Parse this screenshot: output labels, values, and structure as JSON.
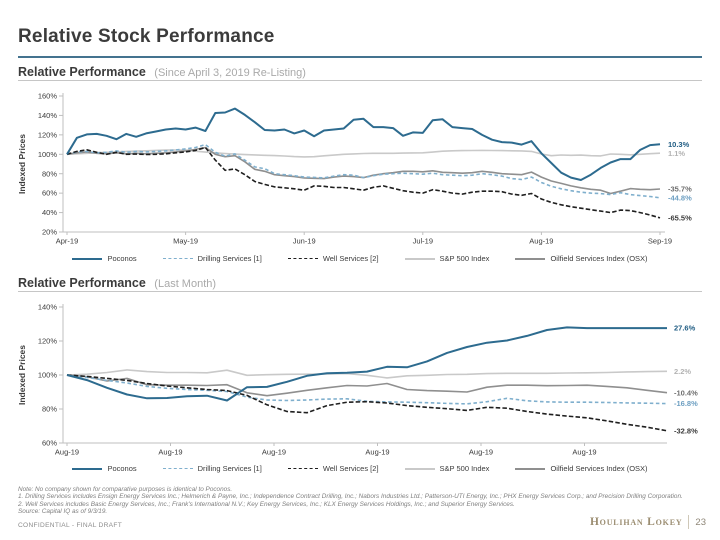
{
  "page": {
    "title": "Relative Stock Performance",
    "confidential": "CONFIDENTIAL - FINAL DRAFT",
    "logo": "Houlihan Lokey",
    "page_number": "23"
  },
  "colors": {
    "accent_rule": "#44738f",
    "poconos_blue": "#2d6b8f",
    "drilling_blue": "#7fafcd",
    "well_black": "#1f1f1f",
    "sp500_gray": "#c9c9c9",
    "osx_gray": "#8f8f8f"
  },
  "footnotes": {
    "note": "Note: No company shown for comparative purposes is identical to Poconos.",
    "f1": "1.  Drilling Services includes Ensign Energy Services Inc.; Helmerich & Payne, Inc.; Independence Contract Drilling, Inc.; Nabors Industries Ltd.; Patterson-UTI Energy, Inc.; PHX Energy Services Corp.; and Precision Drilling Corporation.",
    "f2": "2.  Well Services includes Basic Energy Services, Inc.; Frank's International N.V.; Key Energy Services, Inc.; KLX Energy Services Holdings, Inc.; and Superior Energy Services.",
    "source": "Source: Capital IQ as of 9/3/19."
  },
  "chart_data": [
    {
      "type": "line",
      "title": "Relative Performance",
      "subtitle": "(Since April 3, 2019 Re-Listing)",
      "ylabel": "Indexed Prices",
      "ylim": [
        20,
        160
      ],
      "yticks": [
        "160%",
        "140%",
        "120%",
        "100%",
        "80%",
        "60%",
        "40%",
        "20%"
      ],
      "xticks": [
        "Apr-19",
        "May-19",
        "Jun-19",
        "Jul-19",
        "Aug-19",
        "Sep-19"
      ],
      "grid": false,
      "legend_position": "bottom",
      "series": [
        {
          "name": "Poconos",
          "style": "solid",
          "color": "#2d6b8f",
          "label_color": "#1f5c83",
          "end_label": "10.3%",
          "values": [
            100,
            117,
            120.5,
            121,
            119,
            115.5,
            121,
            118,
            121.5,
            123.5,
            125.5,
            126.5,
            125.5,
            127.5,
            124,
            142.5,
            143,
            147,
            140.5,
            133,
            125,
            124.5,
            125.5,
            121.5,
            124.5,
            118.5,
            124.5,
            125.5,
            126.5,
            135.5,
            136.5,
            128,
            128,
            127,
            119,
            122.5,
            122,
            135,
            136,
            128,
            127,
            126,
            120,
            115,
            112.5,
            112,
            110,
            113.5,
            101,
            91,
            81,
            76,
            73.5,
            79,
            86,
            91.5,
            95,
            95,
            104.5,
            109.5,
            110.3
          ]
        },
        {
          "name": "Drilling Services [1]",
          "style": "dashed",
          "color": "#7fafcd",
          "label_color": "#6d9fc2",
          "end_label": "-44.8%",
          "values": [
            100,
            102.5,
            103,
            101.5,
            102,
            103.5,
            102,
            103,
            102.5,
            103,
            103.5,
            104.5,
            105.5,
            107,
            110,
            102,
            98,
            100.4,
            93.9,
            87,
            85.2,
            80,
            79,
            78,
            76.5,
            76.2,
            75.7,
            77.5,
            79,
            78.5,
            76,
            78,
            79.5,
            80,
            80.5,
            80,
            79.5,
            80.5,
            79,
            78.5,
            78,
            78.5,
            80,
            79,
            77.5,
            75,
            74,
            76.5,
            71,
            67,
            64.5,
            62.5,
            61,
            60,
            59.5,
            58.5,
            60.5,
            58.5,
            57.5,
            56.5,
            55.2
          ]
        },
        {
          "name": "Well Services [2]",
          "style": "dashed",
          "color": "#1f1f1f",
          "label_color": "#3b3b3b",
          "end_label": "-65.5%",
          "values": [
            100,
            103,
            104.6,
            102,
            100,
            102,
            100,
            100.3,
            99.8,
            100,
            100.5,
            101.5,
            102.5,
            104,
            107,
            94,
            83.5,
            85,
            79,
            72,
            69,
            66.4,
            65.5,
            64.5,
            63,
            67.5,
            67,
            65.8,
            65.8,
            64.5,
            63,
            66,
            67.5,
            65,
            62.5,
            61,
            60,
            63.5,
            62,
            60,
            59,
            61,
            62,
            62,
            61.5,
            59,
            57.8,
            59.6,
            54,
            50.5,
            48,
            46,
            44.5,
            43,
            41.5,
            40,
            42.5,
            42,
            40,
            37.5,
            34.5
          ]
        },
        {
          "name": "S&P 500 Index",
          "style": "solid",
          "color": "#c9c9c9",
          "label_color": "#b3b3b3",
          "end_label": "1.1%",
          "values": [
            100,
            100.5,
            101,
            101.5,
            102,
            102.5,
            103,
            103.3,
            103.6,
            104,
            104.3,
            104.4,
            104.3,
            103.2,
            102.3,
            101.5,
            100.8,
            100.2,
            99.7,
            99.4,
            99,
            98.6,
            98.2,
            97.6,
            97.3,
            97.5,
            98.4,
            99.2,
            100,
            100.4,
            100.8,
            101,
            101,
            101,
            101.2,
            101.4,
            101.5,
            102.3,
            103.2,
            103.6,
            103.8,
            103.9,
            104,
            103.9,
            103.8,
            103.6,
            103.5,
            103,
            100.3,
            98.5,
            99.3,
            99,
            99.2,
            98.5,
            98.3,
            100.3,
            100,
            99.5,
            100,
            100.6,
            101.1
          ]
        },
        {
          "name": "Oilfield Services Index (OSX)",
          "style": "solid",
          "color": "#8f8f8f",
          "label_color": "#6e6e6e",
          "end_label": "-35.7%",
          "values": [
            100,
            101.5,
            102.5,
            101,
            100.5,
            101.5,
            100.5,
            101,
            100.5,
            101,
            101.5,
            102.5,
            103.5,
            105,
            107,
            100,
            97.5,
            98.5,
            92.3,
            84.5,
            82.5,
            79,
            78,
            77,
            75.7,
            75.3,
            75,
            76.5,
            77.5,
            77,
            76,
            78.5,
            80,
            81,
            82.5,
            82.5,
            82,
            83,
            81.5,
            81,
            80.5,
            81,
            82.5,
            81.5,
            80,
            79.5,
            79,
            81.7,
            76.5,
            72.5,
            70,
            67.5,
            65.5,
            64,
            63,
            59.6,
            62,
            64.7,
            64,
            63.5,
            64.3
          ]
        }
      ]
    },
    {
      "type": "line",
      "title": "Relative Performance",
      "subtitle": "(Last Month)",
      "ylabel": "Indexed Prices",
      "ylim": [
        60,
        140
      ],
      "yticks": [
        "140%",
        "120%",
        "100%",
        "80%",
        "60%"
      ],
      "xticks": [
        "Aug-19",
        "Aug-19",
        "Aug-19",
        "Aug-19",
        "Aug-19",
        "Aug-19"
      ],
      "grid": false,
      "legend_position": "bottom",
      "series": [
        {
          "name": "Poconos",
          "style": "solid",
          "color": "#2d6b8f",
          "label_color": "#1f5c83",
          "end_label": "27.6%",
          "values": [
            100,
            97,
            92.5,
            88.5,
            86.3,
            86.5,
            87.5,
            87.8,
            85,
            92.8,
            93,
            96,
            99.5,
            101,
            101.3,
            102,
            104.8,
            104.5,
            108,
            113,
            116.5,
            119,
            120.3,
            123,
            126.5,
            128,
            127.6,
            127.6,
            127.6,
            127.6,
            127.6
          ]
        },
        {
          "name": "Drilling Services [1]",
          "style": "dashed",
          "color": "#7fafcd",
          "label_color": "#6d9fc2",
          "end_label": "-16.8%",
          "values": [
            100,
            98.5,
            96.8,
            95.3,
            93.3,
            92.2,
            91.5,
            91,
            90.3,
            87,
            85.3,
            85,
            85.3,
            85.8,
            86,
            84.5,
            84.2,
            84,
            83.7,
            83.3,
            83,
            84.3,
            86.3,
            84.8,
            84.2,
            84,
            84,
            83.8,
            83.6,
            83.4,
            83.2
          ]
        },
        {
          "name": "Well Services [2]",
          "style": "dashed",
          "color": "#1f1f1f",
          "label_color": "#3b3b3b",
          "end_label": "-32.8%",
          "values": [
            100,
            99.2,
            98,
            96.8,
            95,
            93.5,
            92.5,
            91.5,
            90.8,
            88,
            82.5,
            78.5,
            77.8,
            82,
            84,
            84.3,
            83.5,
            82,
            81,
            80.2,
            79.2,
            81,
            80.5,
            78.5,
            77,
            75.8,
            74.8,
            73,
            71,
            69.3,
            67.2
          ]
        },
        {
          "name": "S&P 500 Index",
          "style": "solid",
          "color": "#c9c9c9",
          "label_color": "#b3b3b3",
          "end_label": "2.2%",
          "values": [
            100,
            100.5,
            101.5,
            103,
            102,
            101.5,
            101.5,
            101.3,
            102.8,
            99.8,
            100.2,
            100.4,
            100.5,
            100.6,
            100.8,
            99.8,
            98.3,
            99.5,
            99.8,
            100.3,
            100.4,
            100.8,
            101,
            101,
            101,
            101.2,
            101.3,
            101.5,
            101.8,
            102,
            102.2
          ]
        },
        {
          "name": "Oilfield Services Index (OSX)",
          "style": "solid",
          "color": "#8f8f8f",
          "label_color": "#6e6e6e",
          "end_label": "-10.4%",
          "values": [
            100,
            99,
            96.5,
            98,
            94.3,
            94,
            94,
            93.8,
            94.3,
            89.5,
            87.8,
            89.3,
            91,
            92.5,
            93.8,
            93.5,
            95,
            91.5,
            90.8,
            90.5,
            90,
            92.8,
            94,
            94,
            93.7,
            93.8,
            94,
            93.3,
            92.5,
            91,
            89.6
          ]
        }
      ]
    }
  ]
}
